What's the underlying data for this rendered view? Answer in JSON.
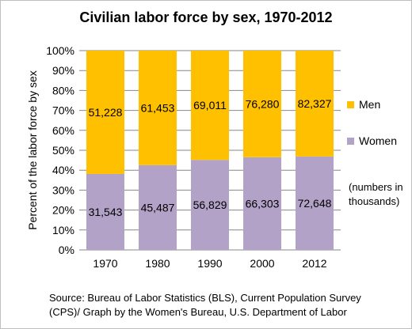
{
  "chart_data": {
    "type": "bar",
    "stacked": true,
    "normalized": true,
    "title": "Civilian labor force by sex, 1970-2012",
    "ylabel": "Percent of the labor force by sex",
    "xlabel": "",
    "ylim": [
      0,
      100
    ],
    "y_ticks": [
      "0%",
      "10%",
      "20%",
      "30%",
      "40%",
      "50%",
      "60%",
      "70%",
      "80%",
      "90%",
      "100%"
    ],
    "categories": [
      "1970",
      "1980",
      "1990",
      "2000",
      "2012"
    ],
    "series": [
      {
        "name": "Women",
        "color": "#b3a2c7",
        "values": [
          31543,
          45487,
          56829,
          66303,
          72648
        ],
        "labels": [
          "31,543",
          "45,487",
          "56,829",
          "66,303",
          "72,648"
        ]
      },
      {
        "name": "Men",
        "color": "#ffc000",
        "values": [
          51228,
          61453,
          69011,
          76280,
          82327
        ],
        "labels": [
          "51,228",
          "61,453",
          "69,011",
          "76,280",
          "82,327"
        ]
      }
    ],
    "legend": {
      "position": "right",
      "order": [
        "Men",
        "Women"
      ]
    },
    "note": "(numbers in thousands)",
    "source": "Source: Bureau of Labor Statistics (BLS), Current Population Survey (CPS)/ Graph by the Women's Bureau, U.S. Department of Labor",
    "grid": true
  }
}
